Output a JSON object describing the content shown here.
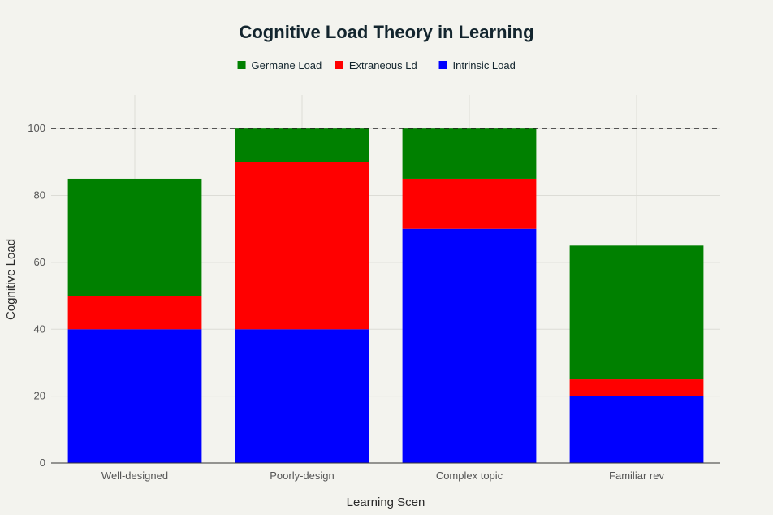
{
  "chart_data": {
    "type": "bar",
    "stacked": true,
    "title": "Cognitive Load Theory in Learning",
    "xlabel": "Learning Scen",
    "ylabel": "Cognitive Load",
    "categories": [
      "Well-designed",
      "Poorly-design",
      "Complex topic",
      "Familiar rev"
    ],
    "series": [
      {
        "name": "Intrinsic Load",
        "color": "#0000ff",
        "values": [
          40,
          40,
          70,
          20
        ]
      },
      {
        "name": "Extraneous Ld",
        "color": "#ff0000",
        "values": [
          10,
          50,
          15,
          5
        ]
      },
      {
        "name": "Germane Load",
        "color": "#008000",
        "values": [
          35,
          10,
          15,
          40
        ]
      }
    ],
    "legend_order": [
      "Germane Load",
      "Extraneous Ld",
      "Intrinsic Load"
    ],
    "legend_position": "top-center",
    "ylim": [
      0,
      110
    ],
    "yticks": [
      0,
      20,
      40,
      60,
      80,
      100
    ],
    "reference_line": {
      "y": 100,
      "style": "dashed"
    },
    "grid": true
  }
}
